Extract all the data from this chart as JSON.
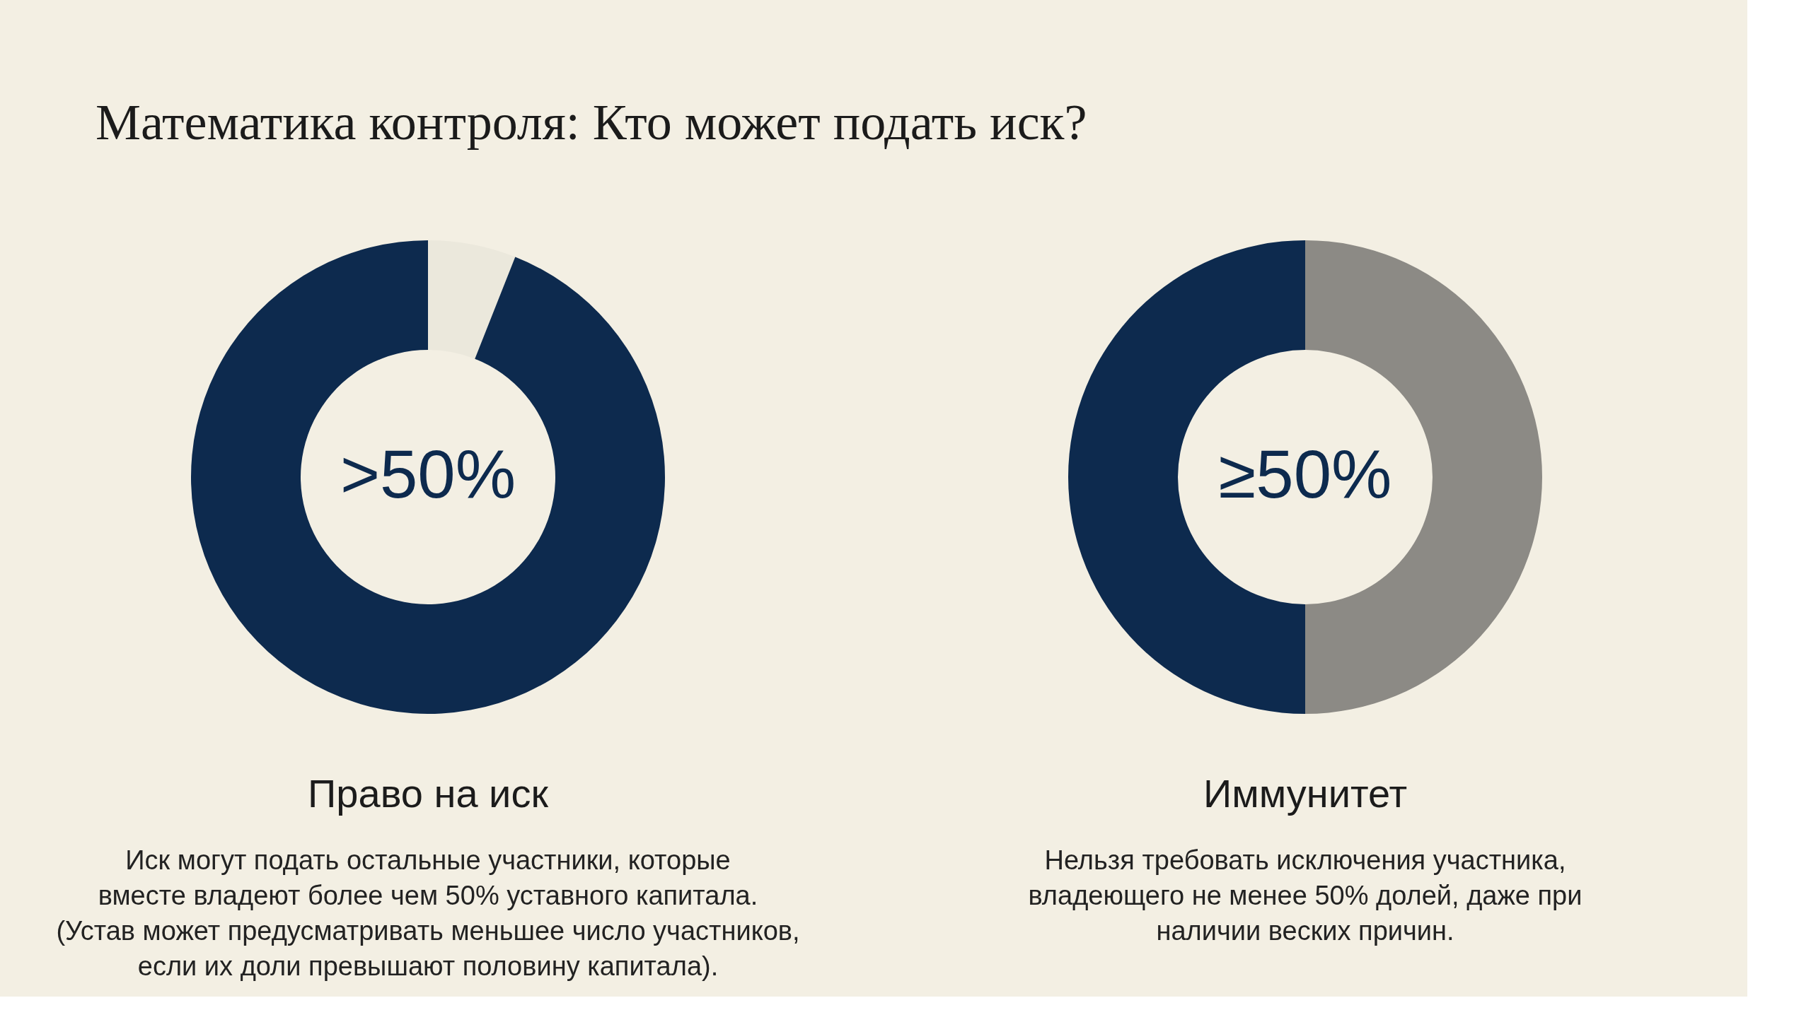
{
  "chart_data": [
    {
      "type": "other",
      "title": "Математика контроля: Кто может подать иск?"
    },
    {
      "type": "donut",
      "title": "Право на иск",
      "categories": [
        null,
        null
      ],
      "values": [
        6,
        94
      ],
      "colors": [
        "#ebe8dc",
        "#0d2a4e"
      ],
      "annotations": [
        ">50%",
        "Иск могут подать остальные участники, которые\nвместе владеют более чем 50% уставного капитала.\n(Устав может предусматривать меньшее число участников,\nесли их доли превышают половину капитала)."
      ]
    },
    {
      "type": "donut",
      "title": "Иммунитет",
      "categories": [
        null,
        null
      ],
      "values": [
        50,
        50
      ],
      "colors": [
        "#8c8a85",
        "#0d2a4e"
      ],
      "annotations": [
        "≥50%",
        "Нельзя требовать исключения участника,\nвладеющего не менее 50% долей, даже при\nналичии веских причин."
      ]
    }
  ]
}
